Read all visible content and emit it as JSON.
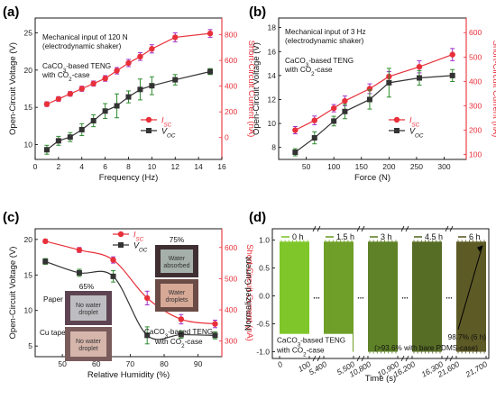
{
  "chart_data": [
    {
      "panel": "(a)",
      "type": "line",
      "xlabel": "Frequency (Hz)",
      "ylabel_left": "Open-Circuit Voltage (V)",
      "ylabel_right": "Short-Circuit Current (nA)",
      "xlim": [
        0,
        16
      ],
      "xticks": [
        "0",
        "2",
        "4",
        "6",
        "8",
        "10",
        "12",
        "14",
        "16"
      ],
      "ylim_left": [
        8,
        27
      ],
      "yticks_left": [
        "10",
        "15",
        "20",
        "25"
      ],
      "ylim_right": [
        -170,
        930
      ],
      "yticks_right": [
        "0",
        "200",
        "400",
        "600",
        "800"
      ],
      "annotations": [
        "Mechanical input of 120 N",
        "(electrodynamic shaker)",
        "CaCO",
        "3",
        "-based TENG",
        "with CO",
        "2",
        "-case"
      ],
      "series": [
        {
          "name": "I",
          "sub": "SC",
          "axis": "right",
          "color": "#e8303a",
          "marker": "circle",
          "x": [
            1,
            2,
            3,
            4,
            5,
            6,
            7,
            8,
            9,
            10,
            12,
            15
          ],
          "y": [
            260,
            300,
            340,
            380,
            420,
            460,
            520,
            580,
            630,
            690,
            780,
            810
          ],
          "err": [
            18,
            18,
            18,
            20,
            20,
            22,
            25,
            28,
            30,
            32,
            35,
            30
          ]
        },
        {
          "name": "V",
          "sub": "OC",
          "axis": "left",
          "color": "#333333",
          "marker": "square",
          "x": [
            1,
            2,
            3,
            4,
            5,
            6,
            7,
            8,
            9,
            10,
            12,
            15
          ],
          "y": [
            9.3,
            10.5,
            11.0,
            12.0,
            13.2,
            14.5,
            15.2,
            16.4,
            17.4,
            17.9,
            18.7,
            19.8
          ],
          "err": [
            0.6,
            0.6,
            0.6,
            0.8,
            0.8,
            1.0,
            1.6,
            0.8,
            1.4,
            1.2,
            0.7,
            0.4
          ]
        }
      ]
    },
    {
      "panel": "(b)",
      "type": "line",
      "xlabel": "Force (N)",
      "ylabel_left": "Open-Circuit Voltage (V)",
      "ylabel_right": "Short-Circuit Current (nA)",
      "xlim": [
        0,
        340
      ],
      "xticks": [
        "50",
        "100",
        "150",
        "200",
        "250",
        "300"
      ],
      "ylim_left": [
        7,
        18.8
      ],
      "yticks_left": [
        "8",
        "10",
        "12",
        "14",
        "16",
        "18"
      ],
      "ylim_right": [
        80,
        660
      ],
      "yticks_right": [
        "100",
        "200",
        "300",
        "400",
        "500",
        "600"
      ],
      "annotations": [
        "Mechanical input of 3 Hz",
        "(electrodynamic shaker)",
        "CaCO",
        "3",
        "-based TENG",
        "with CO",
        "2",
        "-case"
      ],
      "series": [
        {
          "name": "I",
          "sub": "SC",
          "axis": "right",
          "color": "#e8303a",
          "marker": "circle",
          "x": [
            30,
            65,
            100,
            120,
            165,
            200,
            255,
            315
          ],
          "y": [
            200,
            240,
            290,
            320,
            370,
            420,
            460,
            510
          ],
          "err": [
            15,
            18,
            15,
            20,
            20,
            20,
            25,
            25
          ]
        },
        {
          "name": "V",
          "sub": "OC",
          "axis": "left",
          "color": "#333333",
          "marker": "square",
          "x": [
            30,
            65,
            100,
            120,
            165,
            200,
            255,
            315
          ],
          "y": [
            7.6,
            8.8,
            10.2,
            11.0,
            12.0,
            13.4,
            13.8,
            14.0
          ],
          "err": [
            0.3,
            0.5,
            0.4,
            0.6,
            0.8,
            1.2,
            0.6,
            0.5
          ]
        }
      ]
    },
    {
      "panel": "(c)",
      "type": "line",
      "xlabel": "Relative Humidity (%)",
      "ylabel_left": "Open-Circuit Voltage (V)",
      "ylabel_right": "Short-Circuit Current (nA)",
      "xlim": [
        42,
        97
      ],
      "xticks": [
        "50",
        "60",
        "70",
        "80",
        "90"
      ],
      "ylim_left": [
        3.5,
        21.5
      ],
      "yticks_left": [
        "5",
        "10",
        "15",
        "20"
      ],
      "ylim_right": [
        250,
        660
      ],
      "yticks_right": [
        "300",
        "400",
        "500",
        "600"
      ],
      "annotations": [
        "CaCO",
        "3",
        "-based TENG",
        "with CO",
        "2",
        "-case",
        "65%",
        "75%",
        "Paper",
        "Cu tape"
      ],
      "insets": {
        "paper_label": "No water droplet",
        "cu_label": "No water droplet",
        "absorbed_label": "Water absorbed",
        "droplets_label": "Water droplets"
      },
      "series": [
        {
          "name": "I",
          "sub": "SC",
          "axis": "right",
          "color": "#e8303a",
          "marker": "circle",
          "x": [
            45,
            55,
            65,
            75,
            85,
            95
          ],
          "y": [
            620,
            592,
            560,
            438,
            370,
            355
          ],
          "err": [
            6,
            8,
            10,
            22,
            15,
            12
          ]
        },
        {
          "name": "V",
          "sub": "OC",
          "axis": "left",
          "color": "#333333",
          "marker": "square",
          "x": [
            45,
            55,
            65,
            75,
            85,
            95
          ],
          "y": [
            16.9,
            15.3,
            14.8,
            6.5,
            6.6,
            6.5
          ],
          "err": [
            0.4,
            0.5,
            0.8,
            1.2,
            0.5,
            0.5
          ]
        }
      ]
    },
    {
      "panel": "(d)",
      "type": "line",
      "xlabel": "Time (s)",
      "ylabel": "Normalized Current",
      "xticks": [
        "0",
        "100",
        "5,400",
        "5,500",
        "10,800",
        "10,900",
        "16,200",
        "16,300",
        "21,600",
        "21,700"
      ],
      "ylim": [
        -1.12,
        1.2
      ],
      "yticks": [
        "-1.0",
        "-0.5",
        "0.0",
        "0.5",
        "1.0"
      ],
      "legend": [
        "0 h",
        "1.5 h",
        "3 h",
        "4.5 h",
        "6 h"
      ],
      "legend_colors": [
        "#7ec62a",
        "#6f9f28",
        "#5f8228",
        "#566d26",
        "#5d5a26"
      ],
      "amplitude_top": [
        0.97,
        0.97,
        0.97,
        0.97,
        0.97
      ],
      "dots": [
        "...",
        "...",
        "...",
        "..."
      ],
      "annotations": [
        "CaCO",
        "3",
        "-based TENG",
        "with CO",
        "2",
        "-case",
        "98.7% (6 h)",
        "(>93.6% with bare PDMS-case)"
      ]
    }
  ],
  "panel_labels": [
    "(a)",
    "(b)",
    "(c)",
    "(d)"
  ]
}
